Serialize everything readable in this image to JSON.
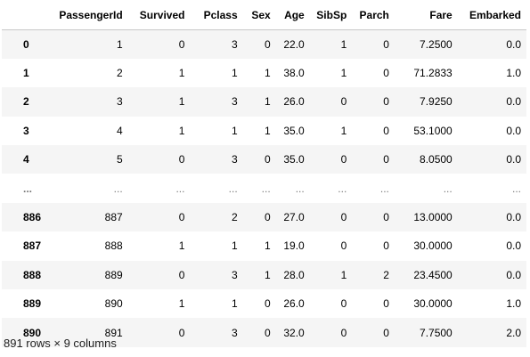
{
  "table": {
    "columns": [
      "",
      "PassengerId",
      "Survived",
      "Pclass",
      "Sex",
      "Age",
      "SibSp",
      "Parch",
      "Fare",
      "Embarked"
    ],
    "rows": [
      {
        "index": "0",
        "cells": [
          "1",
          "0",
          "3",
          "0",
          "22.0",
          "1",
          "0",
          "7.2500",
          "0.0"
        ]
      },
      {
        "index": "1",
        "cells": [
          "2",
          "1",
          "1",
          "1",
          "38.0",
          "1",
          "0",
          "71.2833",
          "1.0"
        ]
      },
      {
        "index": "2",
        "cells": [
          "3",
          "1",
          "3",
          "1",
          "26.0",
          "0",
          "0",
          "7.9250",
          "0.0"
        ]
      },
      {
        "index": "3",
        "cells": [
          "4",
          "1",
          "1",
          "1",
          "35.0",
          "1",
          "0",
          "53.1000",
          "0.0"
        ]
      },
      {
        "index": "4",
        "cells": [
          "5",
          "0",
          "3",
          "0",
          "35.0",
          "0",
          "0",
          "8.0500",
          "0.0"
        ]
      },
      {
        "index": "...",
        "cells": [
          "...",
          "...",
          "...",
          "...",
          "...",
          "...",
          "...",
          "...",
          "..."
        ]
      },
      {
        "index": "886",
        "cells": [
          "887",
          "0",
          "2",
          "0",
          "27.0",
          "0",
          "0",
          "13.0000",
          "0.0"
        ]
      },
      {
        "index": "887",
        "cells": [
          "888",
          "1",
          "1",
          "1",
          "19.0",
          "0",
          "0",
          "30.0000",
          "0.0"
        ]
      },
      {
        "index": "888",
        "cells": [
          "889",
          "0",
          "3",
          "1",
          "28.0",
          "1",
          "2",
          "23.4500",
          "0.0"
        ]
      },
      {
        "index": "889",
        "cells": [
          "890",
          "1",
          "1",
          "0",
          "26.0",
          "0",
          "0",
          "30.0000",
          "1.0"
        ]
      },
      {
        "index": "890",
        "cells": [
          "891",
          "0",
          "3",
          "0",
          "32.0",
          "0",
          "0",
          "7.7500",
          "2.0"
        ]
      }
    ]
  },
  "shape_note": "891 rows × 9 columns"
}
